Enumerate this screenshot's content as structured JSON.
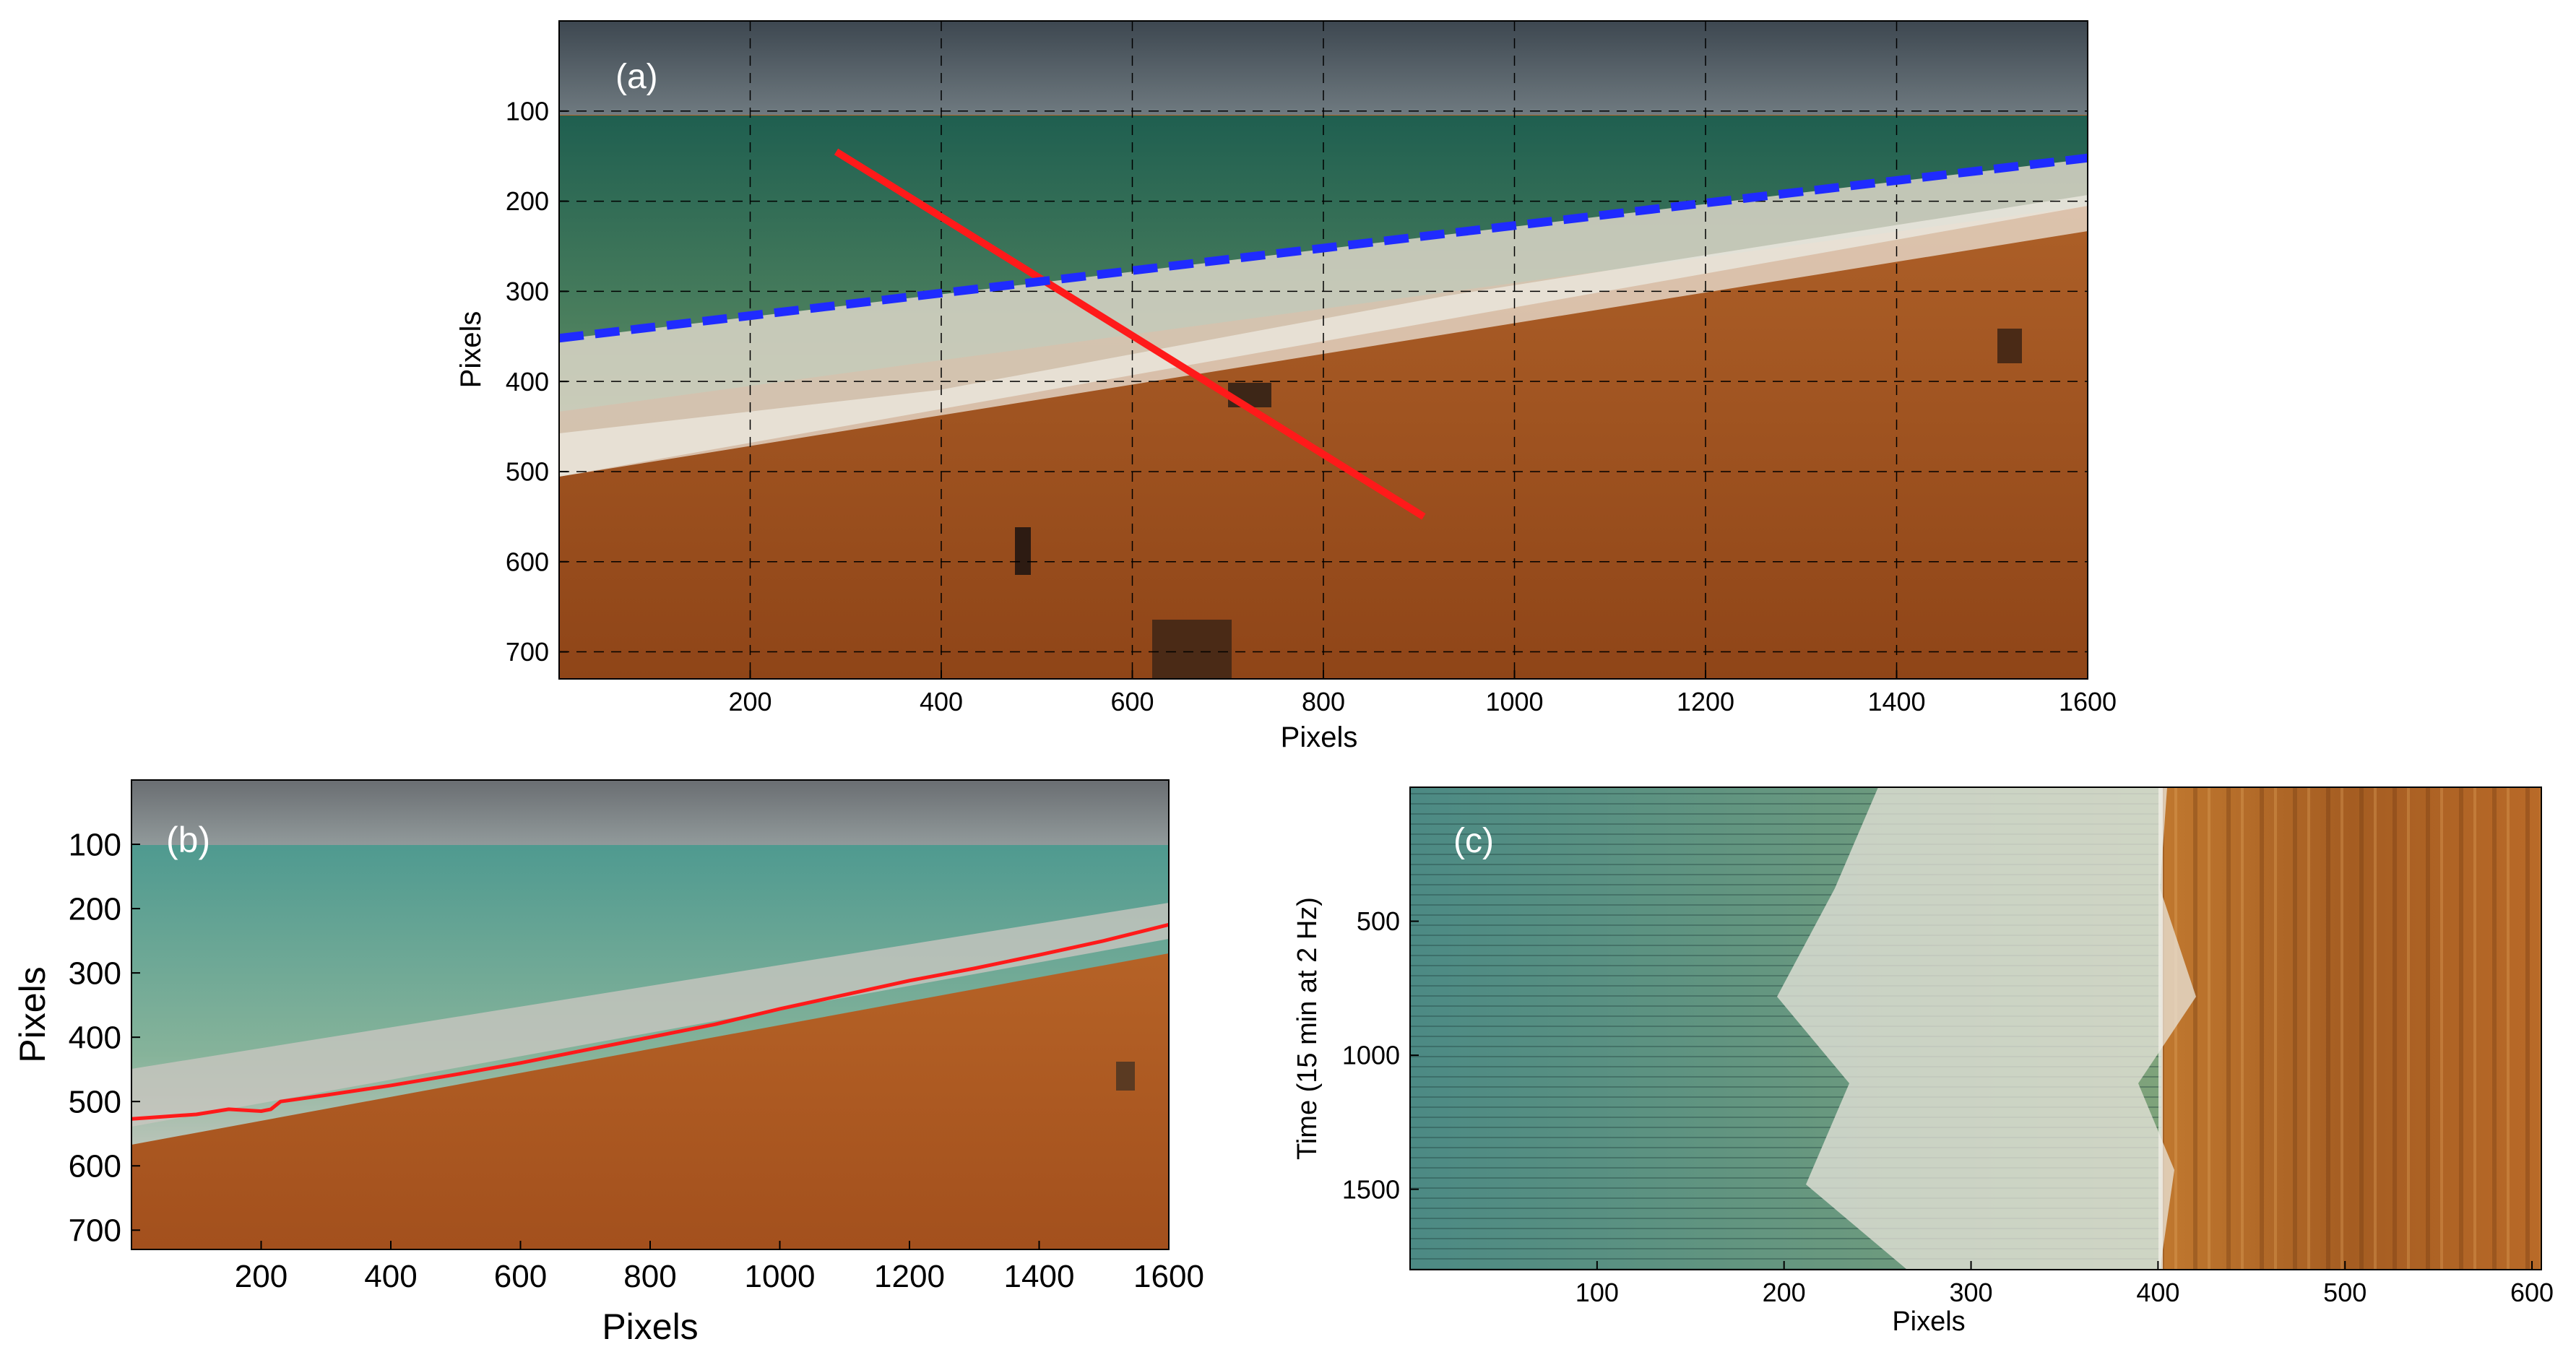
{
  "panels": [
    {
      "id": "a",
      "label": "(a)",
      "xlabel": "Pixels",
      "ylabel": "Pixels",
      "xlim": [
        0,
        1600
      ],
      "ylim": [
        0,
        730
      ],
      "xticks": [
        200,
        400,
        600,
        800,
        1000,
        1200,
        1400,
        1600
      ],
      "yticks": [
        100,
        200,
        300,
        400,
        500,
        600,
        700
      ],
      "grid": "dashed",
      "overlays": [
        {
          "name": "transect",
          "color": "#ff1a1a",
          "style": "solid",
          "points": [
            [
              290,
              145
            ],
            [
              905,
              550
            ]
          ]
        },
        {
          "name": "waterline",
          "color": "#1f2bff",
          "style": "dashed",
          "points": [
            [
              0,
              352
            ],
            [
              1600,
              152
            ]
          ]
        }
      ]
    },
    {
      "id": "b",
      "label": "(b)",
      "xlabel": "Pixels",
      "ylabel": "Pixels",
      "xlim": [
        0,
        1600
      ],
      "ylim": [
        0,
        730
      ],
      "xticks": [
        200,
        400,
        600,
        800,
        1000,
        1200,
        1400,
        1600
      ],
      "yticks": [
        100,
        200,
        300,
        400,
        500,
        600,
        700
      ],
      "overlays": [
        {
          "name": "shoreline",
          "color": "#ff1a1a",
          "style": "solid",
          "points": [
            [
              0,
              527
            ],
            [
              100,
              520
            ],
            [
              150,
              512
            ],
            [
              200,
              515
            ],
            [
              215,
              512
            ],
            [
              230,
              500
            ],
            [
              300,
              490
            ],
            [
              400,
              475
            ],
            [
              500,
              458
            ],
            [
              600,
              440
            ],
            [
              700,
              420
            ],
            [
              800,
              400
            ],
            [
              900,
              380
            ],
            [
              1000,
              356
            ],
            [
              1100,
              334
            ],
            [
              1200,
              312
            ],
            [
              1300,
              293
            ],
            [
              1400,
              272
            ],
            [
              1500,
              250
            ],
            [
              1600,
              225
            ]
          ]
        }
      ]
    },
    {
      "id": "c",
      "label": "(c)",
      "xlabel": "Pixels",
      "ylabel": "Time (15 min at 2 Hz)",
      "xlim": [
        0,
        605
      ],
      "ylim": [
        0,
        1800
      ],
      "xticks": [
        100,
        200,
        300,
        400,
        500,
        600
      ],
      "yticks": [
        500,
        1000,
        1500
      ]
    }
  ],
  "colors": {
    "sky": "#5a626a",
    "sea": "#3f7a5c",
    "foam": "#e9e4da",
    "sand": "#b5602a",
    "sand_dark": "#8d4318"
  }
}
